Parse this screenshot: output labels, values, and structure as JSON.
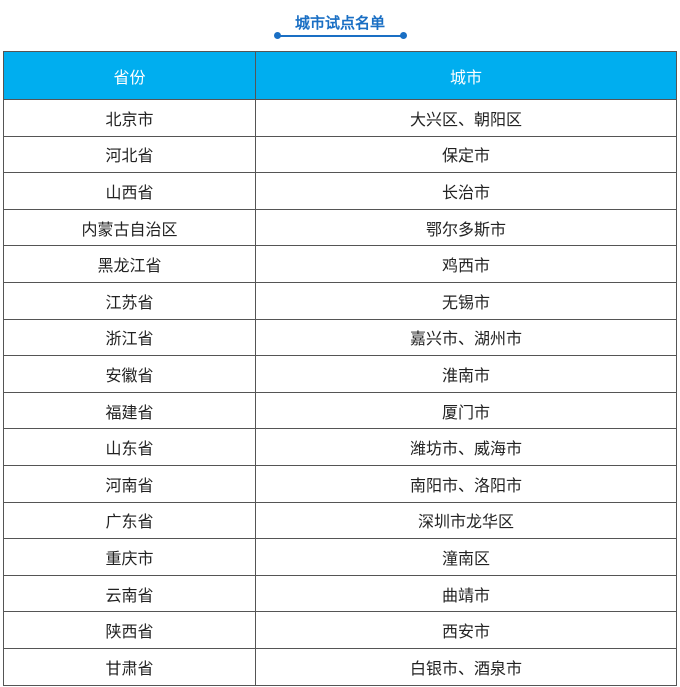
{
  "title": "城市试点名单",
  "colors": {
    "accent": "#1a6fc4",
    "header_bg": "#00aeef"
  },
  "table": {
    "headers": [
      "省份",
      "城市"
    ],
    "rows": [
      [
        "北京市",
        "大兴区、朝阳区"
      ],
      [
        "河北省",
        "保定市"
      ],
      [
        "山西省",
        "长治市"
      ],
      [
        "内蒙古自治区",
        "鄂尔多斯市"
      ],
      [
        "黑龙江省",
        "鸡西市"
      ],
      [
        "江苏省",
        "无锡市"
      ],
      [
        "浙江省",
        "嘉兴市、湖州市"
      ],
      [
        "安徽省",
        "淮南市"
      ],
      [
        "福建省",
        "厦门市"
      ],
      [
        "山东省",
        "潍坊市、威海市"
      ],
      [
        "河南省",
        "南阳市、洛阳市"
      ],
      [
        "广东省",
        "深圳市龙华区"
      ],
      [
        "重庆市",
        "潼南区"
      ],
      [
        "云南省",
        "曲靖市"
      ],
      [
        "陕西省",
        "西安市"
      ],
      [
        "甘肃省",
        "白银市、酒泉市"
      ]
    ]
  }
}
